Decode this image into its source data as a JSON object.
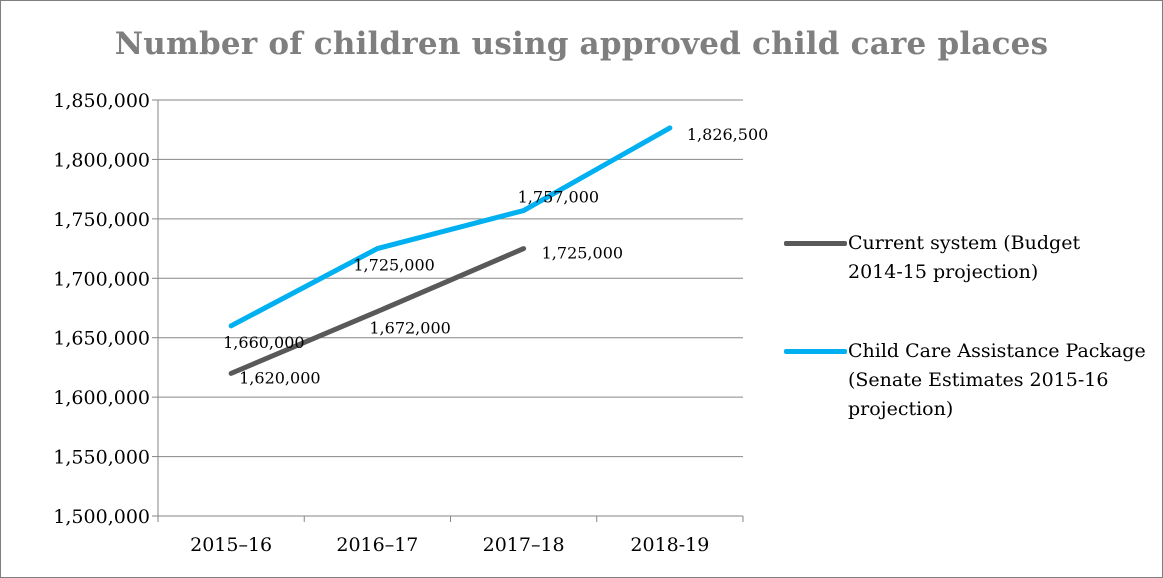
{
  "chart_data": {
    "type": "line",
    "title": "Number of children using approved child care places",
    "categories": [
      "2015–16",
      "2016–17",
      "2017–18",
      "2018-19"
    ],
    "ylim": [
      1500000,
      1850000
    ],
    "ytick_step": 50000,
    "ytick_labels": [
      "1,500,000",
      "1,550,000",
      "1,600,000",
      "1,650,000",
      "1,700,000",
      "1,750,000",
      "1,800,000",
      "1,850,000"
    ],
    "grid": true,
    "legend_position": "right",
    "series": [
      {
        "name": "Current system (Budget 2014-15 projection)",
        "color": "#595959",
        "values": [
          1620000,
          1672000,
          1725000,
          null
        ],
        "labels": [
          "1,620,000",
          "1,672,000",
          "1,725,000",
          null
        ]
      },
      {
        "name": "Child Care Assistance Package (Senate Estimates 2015-16 projection)",
        "color": "#00b0f0",
        "values": [
          1660000,
          1725000,
          1757000,
          1826500
        ],
        "labels": [
          "1,660,000",
          "1,725,000",
          "1,757,000",
          "1,826,500"
        ]
      }
    ]
  }
}
